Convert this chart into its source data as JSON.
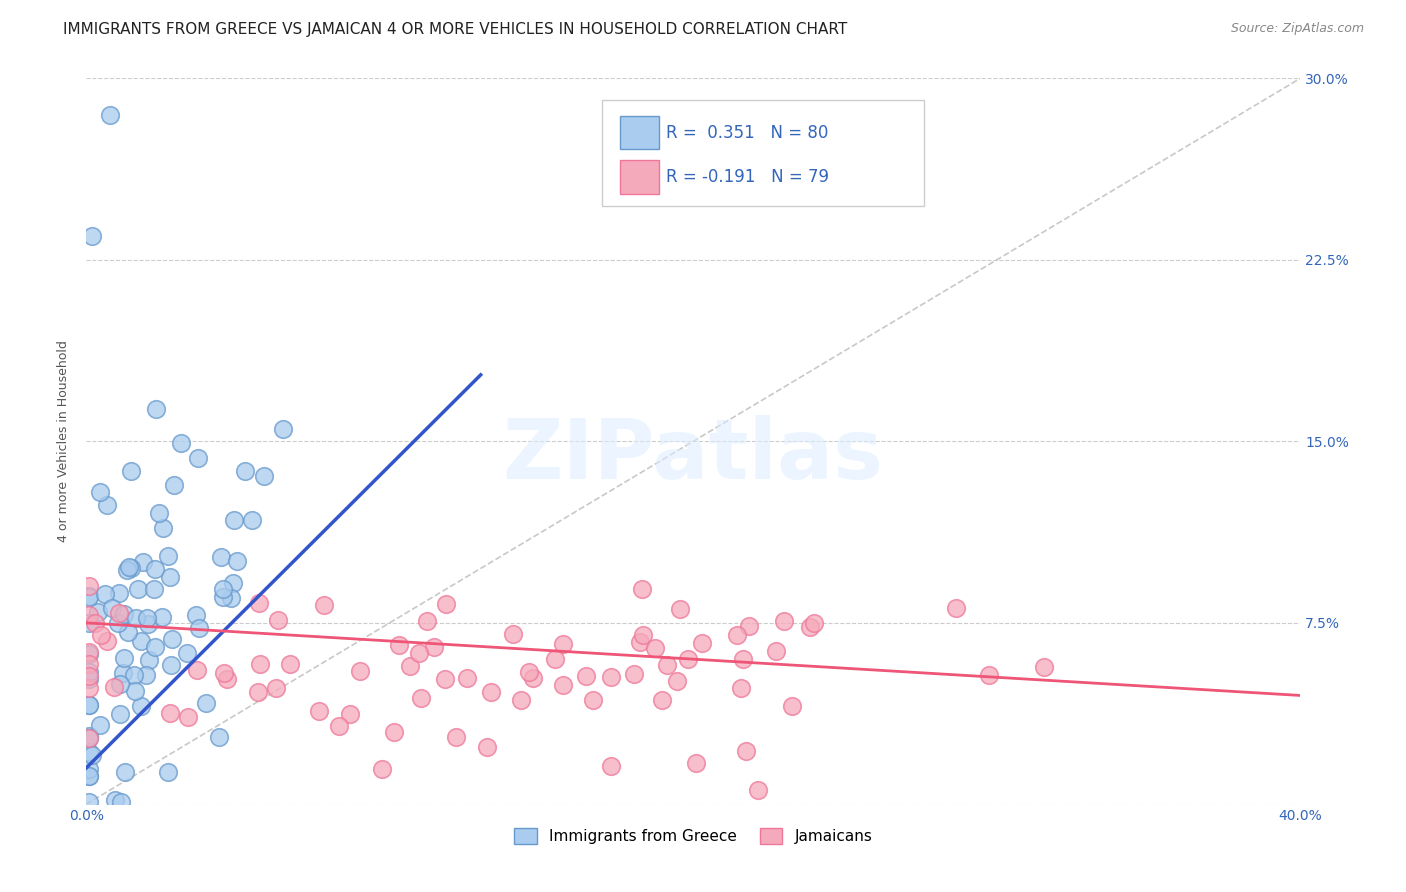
{
  "title": "IMMIGRANTS FROM GREECE VS JAMAICAN 4 OR MORE VEHICLES IN HOUSEHOLD CORRELATION CHART",
  "source": "Source: ZipAtlas.com",
  "ylabel": "4 or more Vehicles in Household",
  "xlim": [
    0.0,
    0.4
  ],
  "ylim": [
    0.0,
    0.3
  ],
  "R_greece": 0.351,
  "N_greece": 80,
  "R_jamaica": -0.191,
  "N_jamaica": 79,
  "greece_fill": "#aaccee",
  "greece_edge": "#6699cc",
  "jamaica_fill": "#f5aabb",
  "jamaica_edge": "#ee7799",
  "greece_line_color": "#3355cc",
  "jamaica_line_color": "#ee5577",
  "diag_line_color": "#bbbbbb",
  "background_color": "#ffffff",
  "title_fontsize": 11,
  "axis_label_fontsize": 9,
  "tick_fontsize": 10,
  "source_fontsize": 9,
  "watermark": "ZIPatlas",
  "legend_box_color": "#ffffff",
  "legend_box_edge": "#cccccc",
  "legend_text_color": "#3366bb",
  "tick_color": "#3366bb",
  "ylabel_color": "#555555"
}
